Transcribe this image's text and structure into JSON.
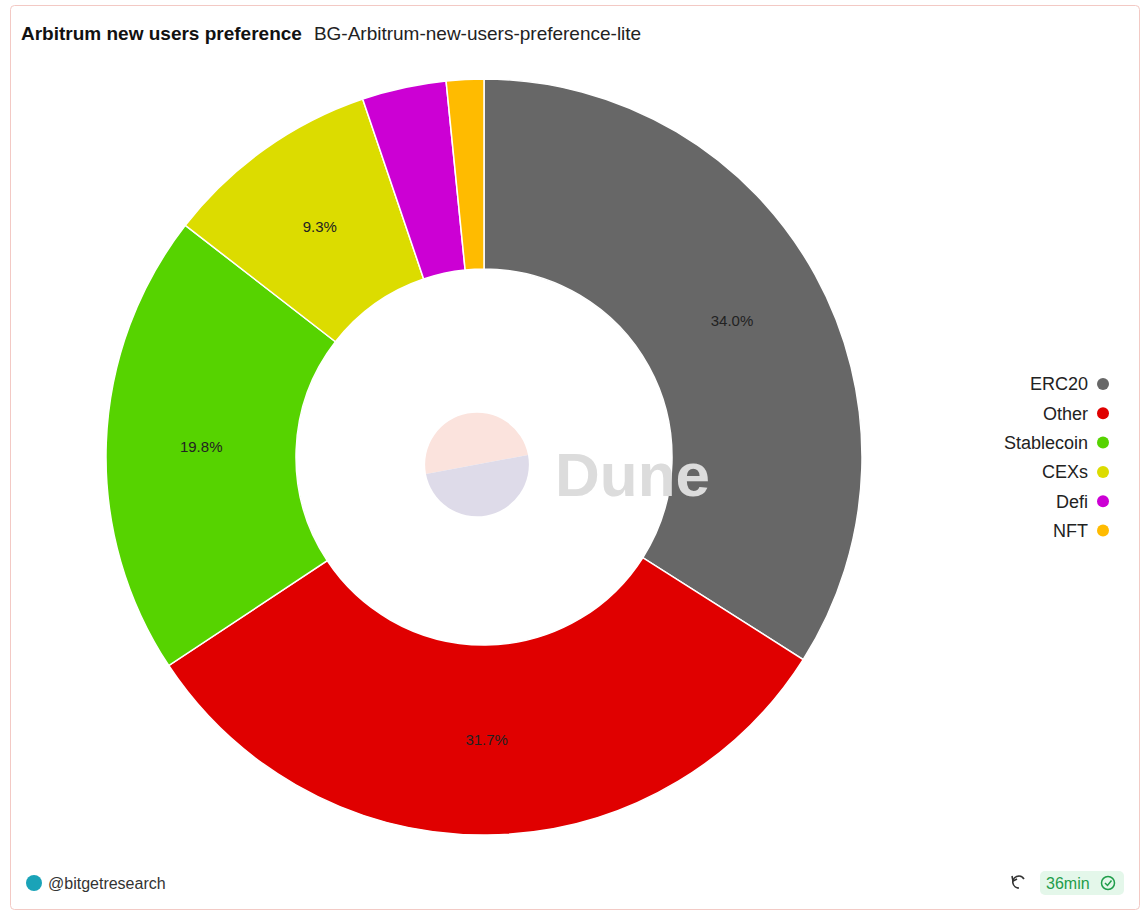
{
  "chart_data": {
    "type": "pie",
    "title": "Arbitrum new users preference",
    "subtitle": "BG-Arbitrum-new-users-preference-lite",
    "categories": [
      "ERC20",
      "Other",
      "Stablecoin",
      "CEXs",
      "Defi",
      "NFT"
    ],
    "values": [
      34.0,
      31.7,
      19.8,
      9.3,
      3.6,
      1.6
    ],
    "value_labels": [
      "34.0%",
      "31.7%",
      "19.8%",
      "9.3%",
      null,
      null
    ],
    "colors": [
      "#676767",
      "#e00000",
      "#56d300",
      "#dcdc00",
      "#cc00d4",
      "#ffbb00"
    ],
    "data_labels": true,
    "legend": "right",
    "annotations": [
      "Dune",
      "@bitgetresearch",
      "36min"
    ]
  }
}
